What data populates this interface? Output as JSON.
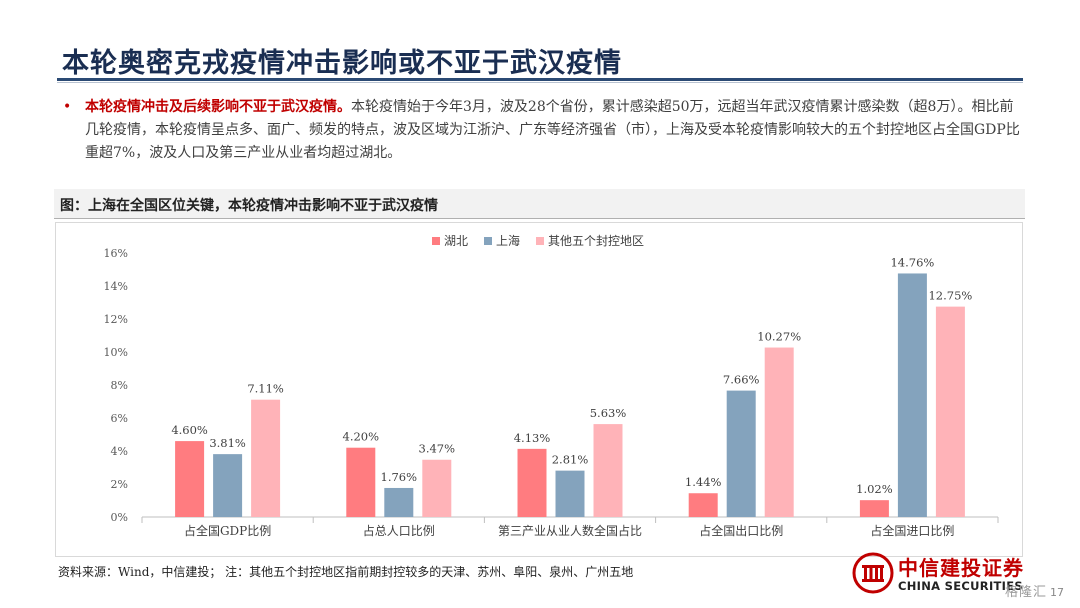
{
  "title": "本轮奥密克戎疫情冲击影响或不亚于武汉疫情",
  "bullet": {
    "lead": "本轮疫情冲击及后续影响不亚于武汉疫情。",
    "body": "本轮疫情始于今年3月，波及28个省份，累计感染超50万，远超当年武汉疫情累计感染数（超8万）。相比前几轮疫情，本轮疫情呈点多、面广、频发的特点，波及区域为江浙沪、广东等经济强省（市），上海及受本轮疫情影响较大的五个封控地区占全国GDP比重超7%，波及人口及第三产业从业者均超过湖北。"
  },
  "figure_caption": "图：上海在全国区位关键，本轮疫情冲击影响不亚于武汉疫情",
  "chart_data": {
    "type": "bar",
    "categories": [
      "占全国GDP比例",
      "占总人口比例",
      "第三产业从业人数全国占比",
      "占全国出口比例",
      "占全国进口比例"
    ],
    "series": [
      {
        "name": "湖北",
        "color": "#ff7c80",
        "values": [
          4.6,
          4.2,
          4.13,
          1.44,
          1.02
        ]
      },
      {
        "name": "上海",
        "color": "#84a3bd",
        "values": [
          3.81,
          1.76,
          2.81,
          7.66,
          14.76
        ]
      },
      {
        "name": "其他五个封控地区",
        "color": "#ffb3b8",
        "values": [
          7.11,
          3.47,
          5.63,
          10.27,
          12.75
        ]
      }
    ],
    "value_labels": [
      [
        "4.60%",
        "4.20%",
        "4.13%",
        "1.44%",
        "1.02%"
      ],
      [
        "3.81%",
        "1.76%",
        "2.81%",
        "7.66%",
        "14.76%"
      ],
      [
        "7.11%",
        "3.47%",
        "5.63%",
        "10.27%",
        "12.75%"
      ]
    ],
    "y_ticks": [
      "0%",
      "2%",
      "4%",
      "6%",
      "8%",
      "10%",
      "12%",
      "14%",
      "16%"
    ],
    "ylim": [
      0,
      16
    ],
    "legend_position": "top-center",
    "grid": false
  },
  "source": "资料来源：Wind，中信建投；  注：其他五个封控地区指前期封控较多的天津、苏州、阜阳、泉州、广州五地",
  "logo": {
    "cn": "中信建投证券",
    "en": "CHINA SECURITIES"
  },
  "page_number": "17",
  "watermark": "格隆汇"
}
